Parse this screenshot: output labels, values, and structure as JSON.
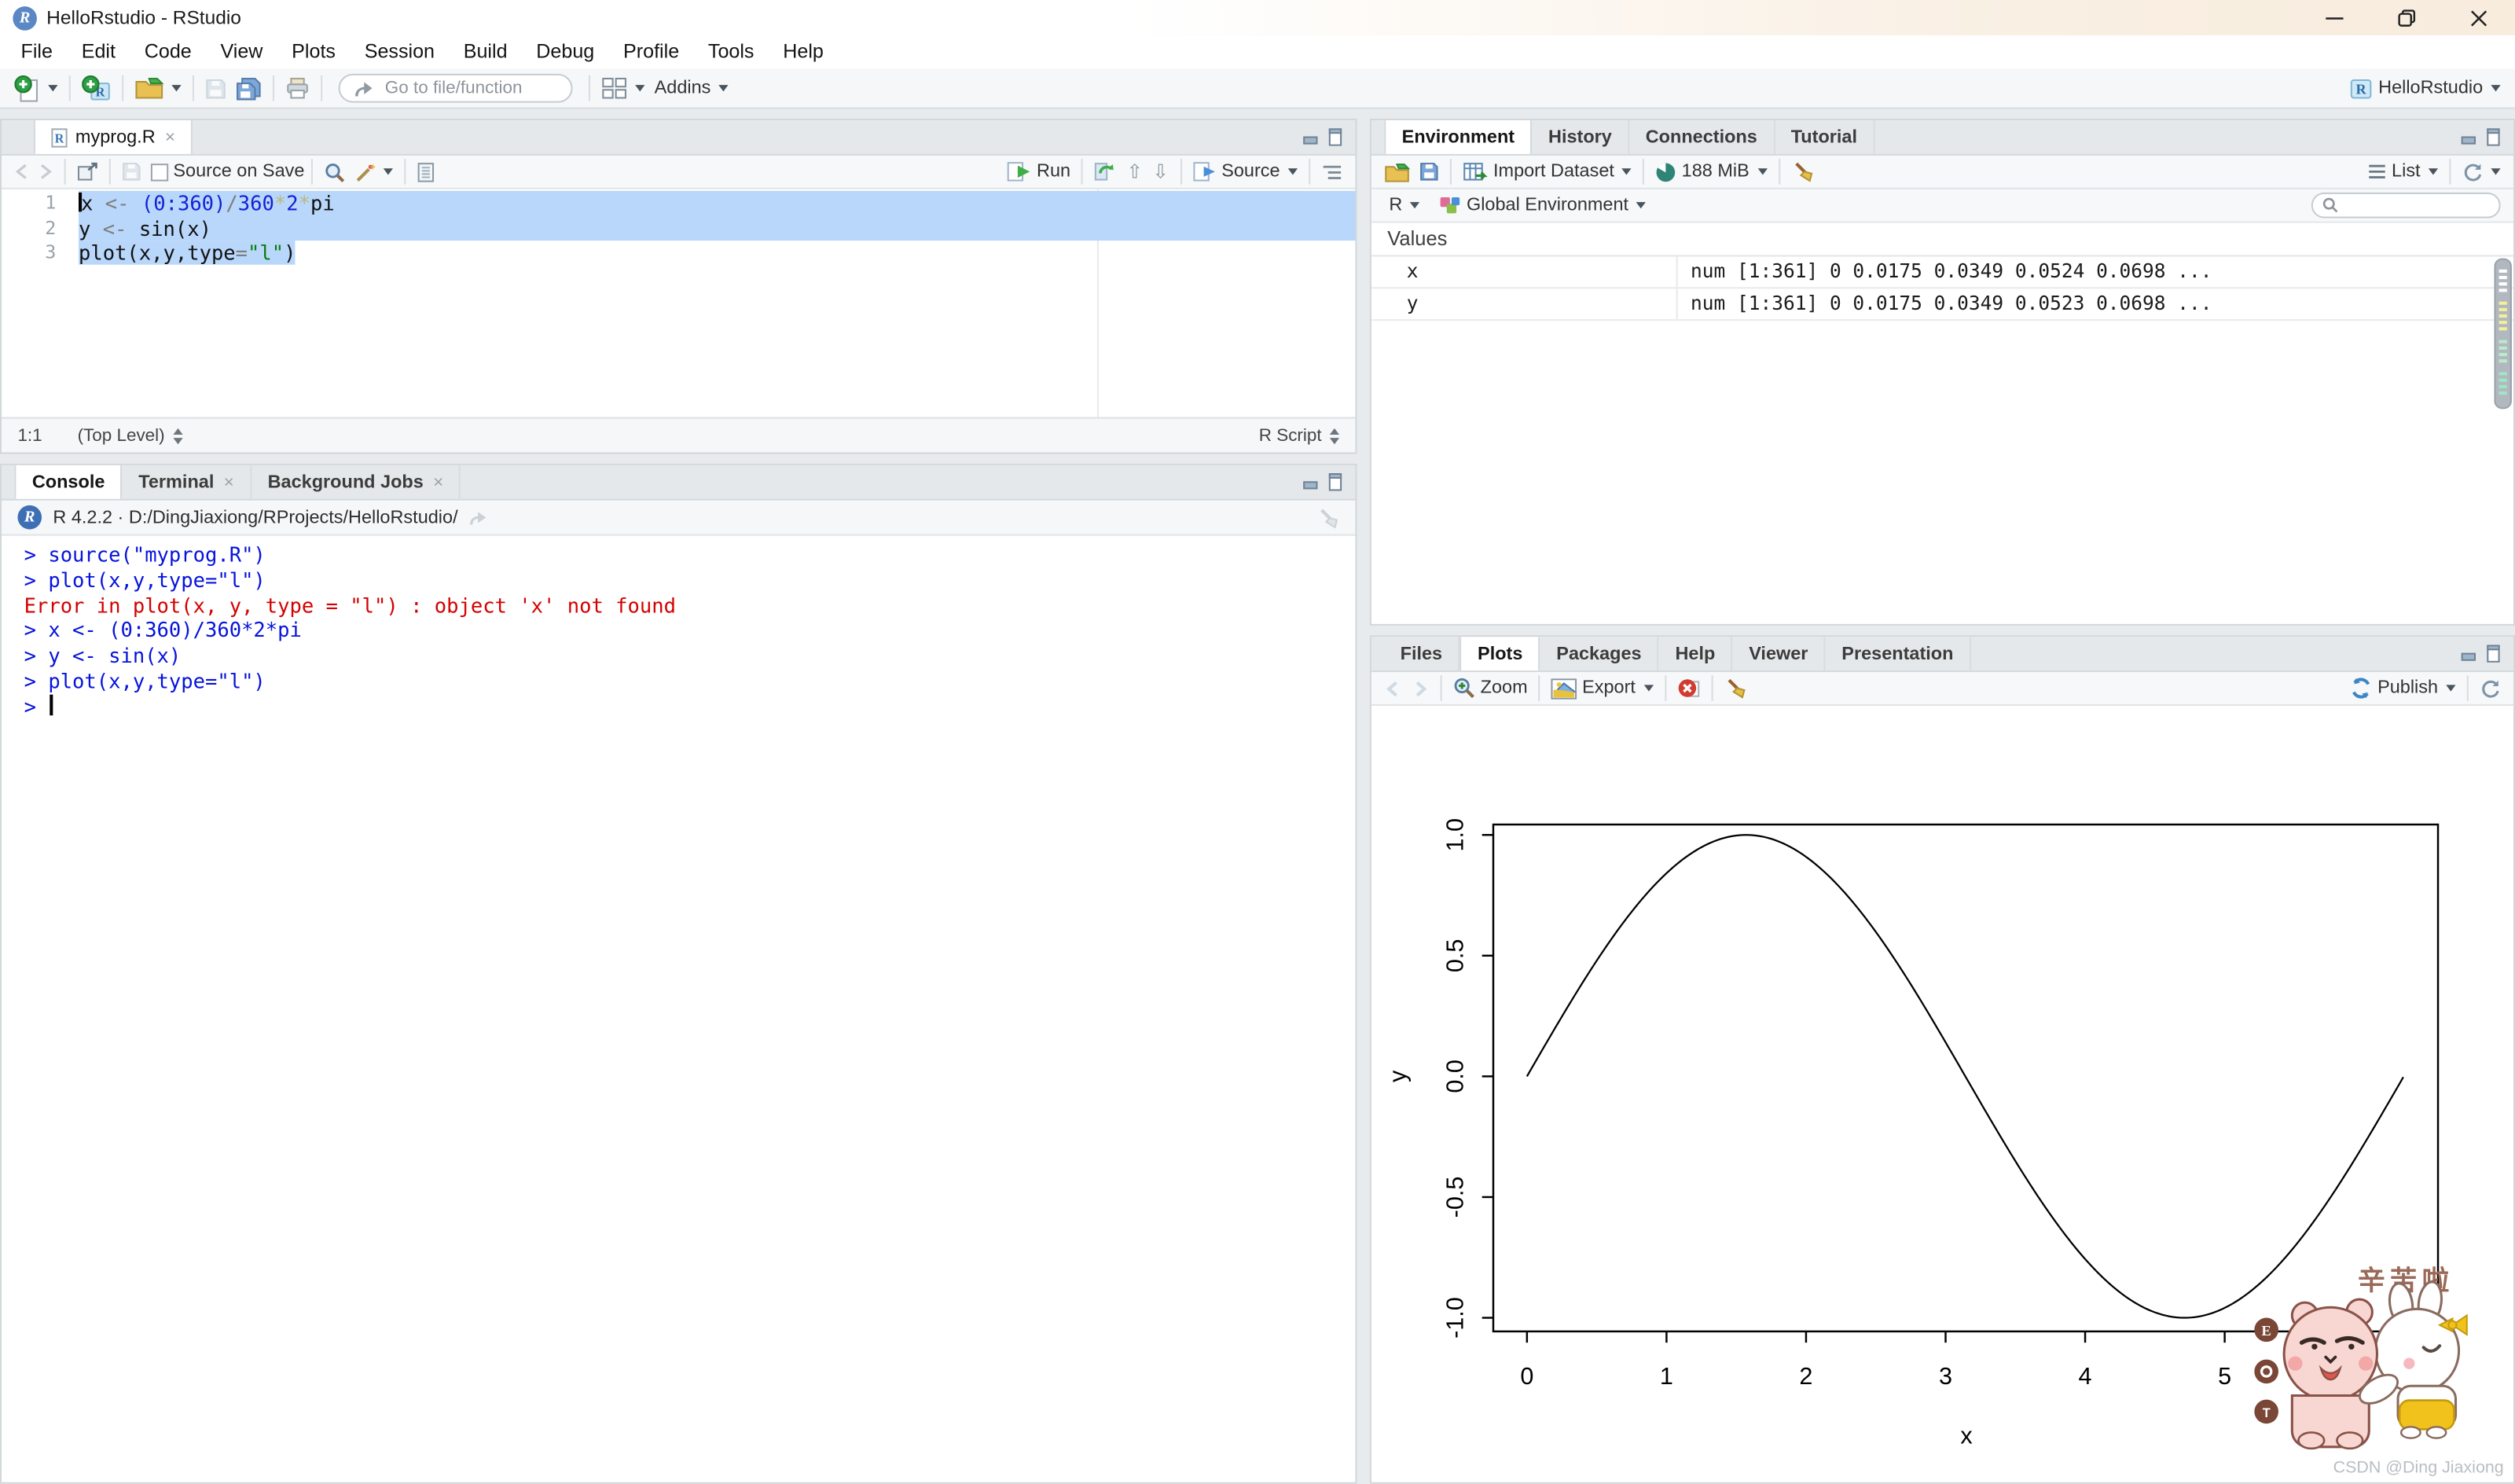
{
  "window": {
    "title": "HelloRstudio - RStudio"
  },
  "menu_bar": {
    "items": [
      "File",
      "Edit",
      "Code",
      "View",
      "Plots",
      "Session",
      "Build",
      "Debug",
      "Profile",
      "Tools",
      "Help"
    ]
  },
  "toolbar": {
    "goto_placeholder": "Go to file/function",
    "addins_label": "Addins",
    "project_label": "HelloRstudio"
  },
  "editor": {
    "tab": {
      "label": "myprog.R"
    },
    "toolbar": {
      "source_on_save": "Source on Save",
      "run": "Run",
      "source": "Source"
    },
    "code_lines": [
      {
        "num": "1",
        "sel": "full",
        "tokens": [
          [
            "x ",
            "pl"
          ],
          [
            "<- ",
            "op"
          ],
          [
            "(0:360)",
            "num"
          ],
          [
            "/",
            "op"
          ],
          [
            "360",
            "num"
          ],
          [
            "*",
            "star"
          ],
          [
            "2",
            "num"
          ],
          [
            "*",
            "star"
          ],
          [
            "pi",
            "pl"
          ]
        ]
      },
      {
        "num": "2",
        "sel": "full",
        "tokens": [
          [
            "y ",
            "pl"
          ],
          [
            "<- ",
            "op"
          ],
          [
            "sin(x)",
            "pl"
          ]
        ]
      },
      {
        "num": "3",
        "sel": "text",
        "tokens": [
          [
            "plot(x,y,type",
            "pl"
          ],
          [
            "=",
            "op"
          ],
          [
            "\"l\"",
            "str"
          ],
          [
            ")",
            "pl"
          ]
        ]
      }
    ],
    "status": {
      "position": "1:1",
      "scope": "(Top Level)",
      "type": "R Script"
    }
  },
  "console": {
    "tabs": [
      "Console",
      "Terminal",
      "Background Jobs"
    ],
    "active_tab": "Console",
    "header": {
      "text": "R 4.2.2 · D:/DingJiaxiong/RProjects/HelloRstudio/"
    },
    "lines": [
      {
        "type": "command",
        "text": "> source(\"myprog.R\")"
      },
      {
        "type": "command",
        "text": "> plot(x,y,type=\"l\")"
      },
      {
        "type": "error",
        "text": "Error in plot(x, y, type = \"l\") : object 'x' not found"
      },
      {
        "type": "command",
        "text": "> x <- (0:360)/360*2*pi"
      },
      {
        "type": "command",
        "text": "> y <- sin(x)"
      },
      {
        "type": "command",
        "text": "> plot(x,y,type=\"l\")"
      },
      {
        "type": "prompt",
        "text": "> "
      }
    ]
  },
  "environment": {
    "tabs": [
      "Environment",
      "History",
      "Connections",
      "Tutorial"
    ],
    "active_tab": "Environment",
    "toolbar": {
      "import": "Import Dataset",
      "memory": "188 MiB",
      "list": "List"
    },
    "scope": {
      "lang": "R",
      "env": "Global Environment"
    },
    "section": "Values",
    "rows": [
      {
        "name": "x",
        "value": "num [1:361] 0 0.0175 0.0349 0.0524 0.0698 ..."
      },
      {
        "name": "y",
        "value": "num [1:361] 0 0.0175 0.0349 0.0523 0.0698 ..."
      }
    ]
  },
  "plots": {
    "tabs": [
      "Files",
      "Plots",
      "Packages",
      "Help",
      "Viewer",
      "Presentation"
    ],
    "active_tab": "Plots",
    "toolbar": {
      "zoom": "Zoom",
      "export": "Export",
      "publish": "Publish"
    },
    "chart": {
      "type": "line",
      "title": "",
      "xlabel": "x",
      "ylabel": "y",
      "xticks": [
        0,
        1,
        2,
        3,
        4,
        5
      ],
      "yticks": [
        "-1.0",
        "-0.5",
        "0.0",
        "0.5",
        "1.0"
      ],
      "x_range": [
        0,
        6.2832
      ],
      "y_range": [
        -1,
        1
      ],
      "series": "y = sin(x) for x in [0, 2*pi], 361 points, black line"
    },
    "sticker": {
      "text": "辛苦啦"
    },
    "watermark": "CSDN @Ding Jiaxiong"
  }
}
